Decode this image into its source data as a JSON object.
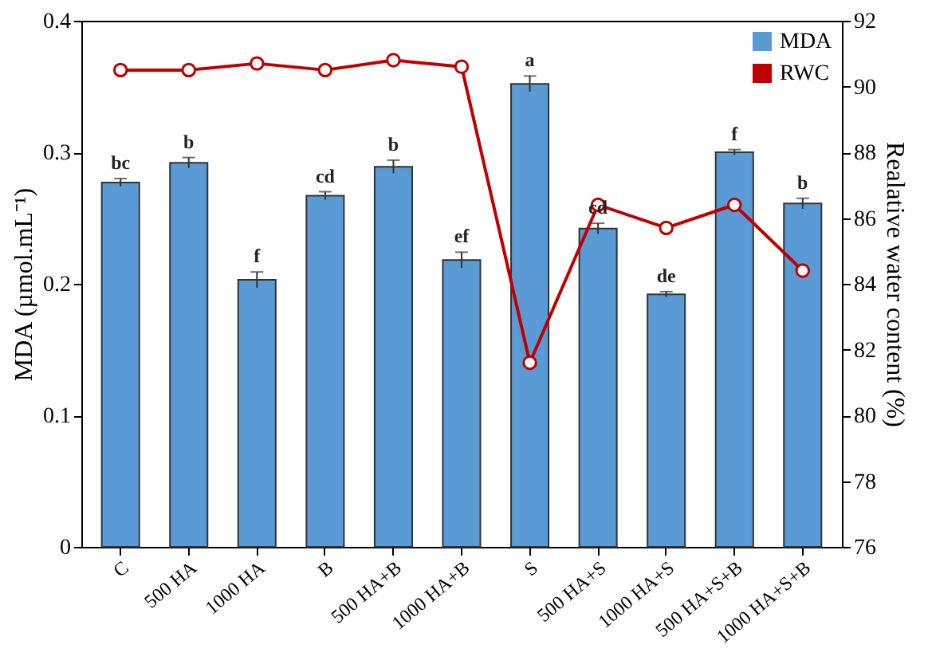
{
  "chart_data": {
    "type": "bar",
    "categories": [
      "C",
      "500 HA",
      "1000 HA",
      "B",
      "500 HA+B",
      "1000 HA+B",
      "S",
      "500 HA+S",
      "1000 HA+S",
      "500 HA+S+B",
      "1000 HA+S+B"
    ],
    "series": [
      {
        "name": "MDA",
        "color": "#5b9bd5",
        "values": [
          0.277,
          0.292,
          0.203,
          0.267,
          0.289,
          0.218,
          0.352,
          0.242,
          0.192,
          0.3,
          0.261
        ],
        "errors": [
          0.003,
          0.004,
          0.006,
          0.003,
          0.005,
          0.006,
          0.006,
          0.004,
          0.002,
          0.002,
          0.004
        ],
        "value_labels": [
          "bc",
          "b",
          "f",
          "cd",
          "b",
          "ef",
          "a",
          "cd",
          "de",
          "f",
          "b"
        ]
      },
      {
        "name": "RWC",
        "type": "line",
        "axis": "y2",
        "color": "#c00000",
        "marker": "circle",
        "values": [
          90.5,
          90.5,
          90.7,
          90.5,
          90.8,
          90.6,
          81.6,
          86.4,
          85.7,
          86.4,
          84.4
        ]
      }
    ],
    "ylabel": "MDA (µmol.mL⁻¹)",
    "y2label": "Realative water content (%)",
    "ylim": [
      0,
      0.4
    ],
    "yticks": [
      0,
      0.1,
      0.2,
      0.3,
      0.4
    ],
    "y2lim": [
      76,
      92
    ],
    "y2ticks": [
      76,
      78,
      80,
      82,
      84,
      86,
      88,
      90,
      92
    ],
    "grid": false,
    "legend": "top right"
  }
}
